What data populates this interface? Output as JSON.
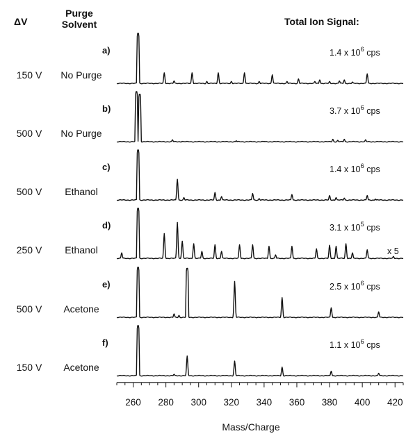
{
  "chart_data": {
    "type": "line",
    "headers": {
      "delta_v": "ΔV",
      "purge_line1": "Purge",
      "purge_line2": "Solvent",
      "total_ion": "Total Ion Signal:"
    },
    "xlabel": "Mass/Charge",
    "xlim": [
      250,
      425
    ],
    "xticks": [
      260,
      280,
      300,
      320,
      340,
      360,
      380,
      400,
      420
    ],
    "panels": [
      {
        "label": "a)",
        "voltage": "150 V",
        "solvent": "No Purge",
        "signal_base": "1.4 x 10",
        "signal_exp": "6",
        "signal_unit": " cps",
        "scale": "",
        "peaks": [
          [
            263,
            1.0
          ],
          [
            279,
            0.22
          ],
          [
            285,
            0.06
          ],
          [
            296,
            0.22
          ],
          [
            305,
            0.05
          ],
          [
            312,
            0.22
          ],
          [
            320,
            0.05
          ],
          [
            328,
            0.22
          ],
          [
            337,
            0.05
          ],
          [
            345,
            0.18
          ],
          [
            354,
            0.05
          ],
          [
            361,
            0.1
          ],
          [
            371,
            0.05
          ],
          [
            374,
            0.08
          ],
          [
            380,
            0.05
          ],
          [
            386,
            0.06
          ],
          [
            389,
            0.08
          ],
          [
            394,
            0.04
          ],
          [
            403,
            0.2
          ]
        ]
      },
      {
        "label": "b)",
        "voltage": "500 V",
        "solvent": "No Purge",
        "signal_base": "3.7 x 10",
        "signal_exp": "6",
        "signal_unit": " cps",
        "scale": "",
        "peaks": [
          [
            262,
            1.0
          ],
          [
            264,
            0.95
          ],
          [
            284,
            0.05
          ],
          [
            290,
            0.02
          ],
          [
            310,
            0.02
          ],
          [
            323,
            0.03
          ],
          [
            340,
            0.02
          ],
          [
            382,
            0.06
          ],
          [
            385,
            0.04
          ],
          [
            389,
            0.06
          ],
          [
            402,
            0.05
          ]
        ]
      },
      {
        "label": "c)",
        "voltage": "500 V",
        "solvent": "Ethanol",
        "signal_base": "1.4 x 10",
        "signal_exp": "6",
        "signal_unit": " cps",
        "scale": "",
        "peaks": [
          [
            263,
            1.0
          ],
          [
            287,
            0.42
          ],
          [
            291,
            0.06
          ],
          [
            310,
            0.16
          ],
          [
            314,
            0.08
          ],
          [
            333,
            0.14
          ],
          [
            337,
            0.04
          ],
          [
            357,
            0.12
          ],
          [
            380,
            0.1
          ],
          [
            384,
            0.06
          ],
          [
            389,
            0.05
          ],
          [
            403,
            0.1
          ],
          [
            408,
            0.03
          ]
        ]
      },
      {
        "label": "d)",
        "voltage": "250 V",
        "solvent": "Ethanol",
        "signal_base": "3.1 x 10",
        "signal_exp": "5",
        "signal_unit": " cps",
        "scale": "x 5",
        "peaks": [
          [
            253,
            0.12
          ],
          [
            263,
            1.0
          ],
          [
            279,
            0.5
          ],
          [
            287,
            0.72
          ],
          [
            290,
            0.35
          ],
          [
            297,
            0.3
          ],
          [
            302,
            0.15
          ],
          [
            310,
            0.28
          ],
          [
            314,
            0.15
          ],
          [
            325,
            0.28
          ],
          [
            333,
            0.28
          ],
          [
            343,
            0.25
          ],
          [
            347,
            0.08
          ],
          [
            357,
            0.25
          ],
          [
            372,
            0.2
          ],
          [
            380,
            0.27
          ],
          [
            384,
            0.25
          ],
          [
            390,
            0.3
          ],
          [
            394,
            0.12
          ],
          [
            403,
            0.18
          ],
          [
            419,
            0.05
          ]
        ]
      },
      {
        "label": "e)",
        "voltage": "500 V",
        "solvent": "Acetone",
        "signal_base": "2.5 x 10",
        "signal_exp": "6",
        "signal_unit": " cps",
        "scale": "",
        "peaks": [
          [
            263,
            1.0
          ],
          [
            285,
            0.08
          ],
          [
            288,
            0.05
          ],
          [
            293,
            0.98
          ],
          [
            322,
            0.72
          ],
          [
            351,
            0.4
          ],
          [
            381,
            0.2
          ],
          [
            410,
            0.12
          ]
        ]
      },
      {
        "label": "f)",
        "voltage": "150 V",
        "solvent": "Acetone",
        "signal_base": "1.1 x 10",
        "signal_exp": "6",
        "signal_unit": " cps",
        "scale": "",
        "peaks": [
          [
            263,
            1.0
          ],
          [
            285,
            0.04
          ],
          [
            293,
            0.4
          ],
          [
            322,
            0.3
          ],
          [
            351,
            0.18
          ],
          [
            381,
            0.1
          ],
          [
            410,
            0.06
          ]
        ]
      }
    ]
  }
}
